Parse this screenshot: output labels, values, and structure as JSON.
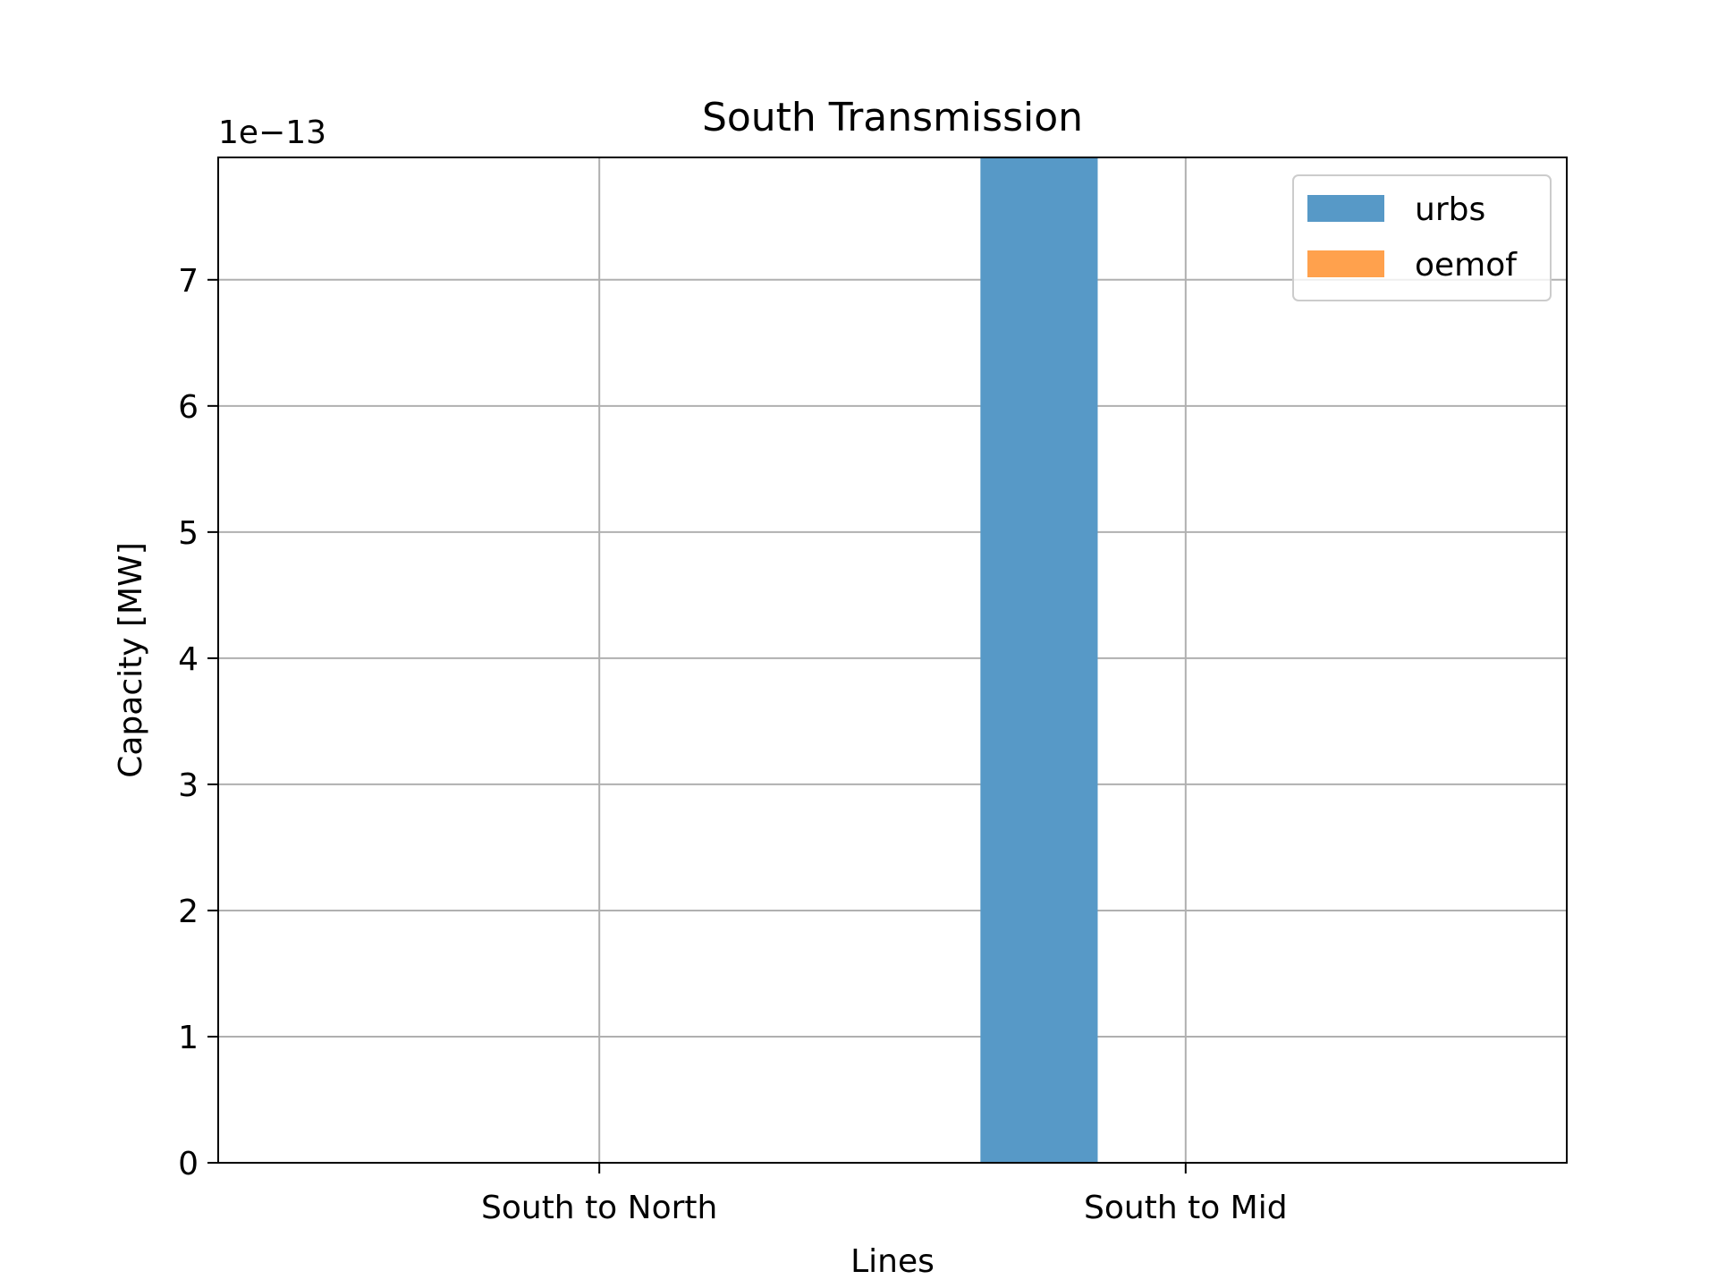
{
  "chart_data": {
    "type": "bar",
    "title": "South Transmission",
    "xlabel": "Lines",
    "ylabel": "Capacity [MW]",
    "offset_text": "1e−13",
    "scale_factor": 1e-13,
    "categories": [
      "South to North",
      "South to Mid"
    ],
    "series": [
      {
        "name": "urbs",
        "color": "#5799c7",
        "values": [
          0,
          8e-13
        ]
      },
      {
        "name": "oemof",
        "color": "#ffa14d",
        "values": [
          0,
          0
        ]
      }
    ],
    "ylim": [
      0,
      7.97e-13
    ],
    "yticks": [
      "0",
      "1",
      "2",
      "3",
      "4",
      "5",
      "6",
      "7"
    ],
    "ytick_values": [
      0,
      1e-13,
      2e-13,
      3e-13,
      4e-13,
      5e-13,
      6e-13,
      7e-13
    ],
    "grid": true,
    "legend_position": "top-right"
  }
}
